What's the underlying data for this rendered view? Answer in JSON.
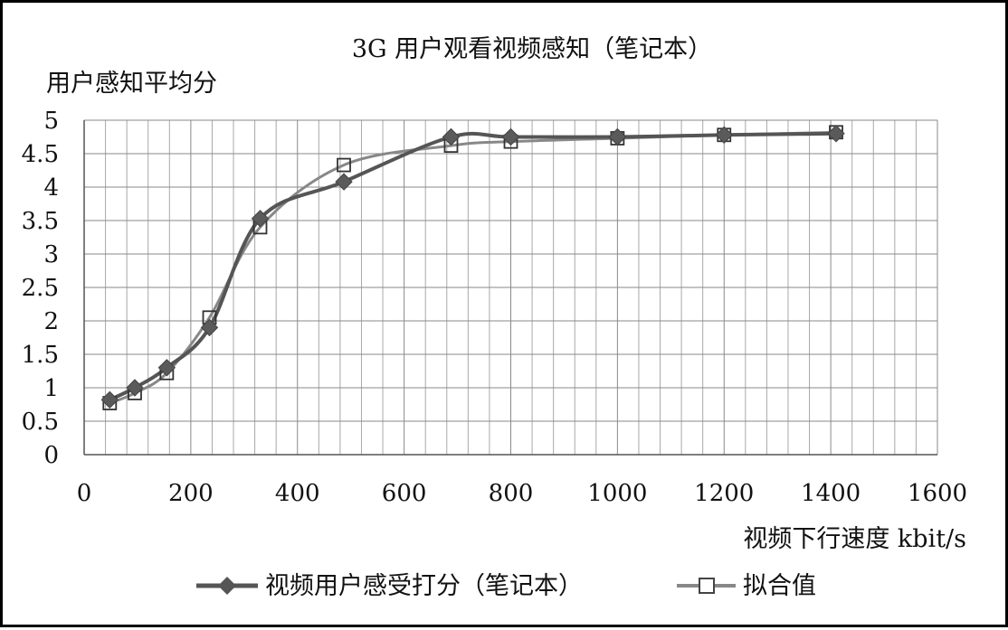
{
  "chart_data": {
    "type": "line",
    "title": "3G 用户观看视频感知（笔记本）",
    "xlabel": "视频下行速度 kbit/s",
    "ylabel": "用户感知平均分",
    "xlim": [
      0,
      1600
    ],
    "ylim": [
      0,
      5
    ],
    "x_ticks": [
      "0",
      "200",
      "400",
      "600",
      "800",
      "1000",
      "1200",
      "1400",
      "1600"
    ],
    "y_ticks": [
      "0",
      "0.5",
      "1",
      "1.5",
      "2",
      "2.5",
      "3",
      "3.5",
      "4",
      "4.5",
      "5"
    ],
    "grid": true,
    "legend_position": "bottom",
    "series": [
      {
        "name": "视频用户感受打分（笔记本）",
        "marker": "diamond-filled",
        "color": "#555555",
        "points": [
          {
            "x": 48,
            "y": 0.82
          },
          {
            "x": 95,
            "y": 1.0
          },
          {
            "x": 155,
            "y": 1.3
          },
          {
            "x": 235,
            "y": 1.9
          },
          {
            "x": 330,
            "y": 3.53
          },
          {
            "x": 487,
            "y": 4.08
          },
          {
            "x": 688,
            "y": 4.75
          },
          {
            "x": 800,
            "y": 4.75
          },
          {
            "x": 1000,
            "y": 4.75
          },
          {
            "x": 1200,
            "y": 4.78
          },
          {
            "x": 1410,
            "y": 4.8
          }
        ]
      },
      {
        "name": "拟合值",
        "marker": "square-open",
        "color": "#888888",
        "points": [
          {
            "x": 48,
            "y": 0.77
          },
          {
            "x": 95,
            "y": 0.92
          },
          {
            "x": 155,
            "y": 1.22
          },
          {
            "x": 235,
            "y": 2.05
          },
          {
            "x": 330,
            "y": 3.4
          },
          {
            "x": 487,
            "y": 4.33
          },
          {
            "x": 688,
            "y": 4.62
          },
          {
            "x": 800,
            "y": 4.68
          },
          {
            "x": 1000,
            "y": 4.73
          },
          {
            "x": 1200,
            "y": 4.78
          },
          {
            "x": 1410,
            "y": 4.82
          }
        ]
      }
    ]
  }
}
